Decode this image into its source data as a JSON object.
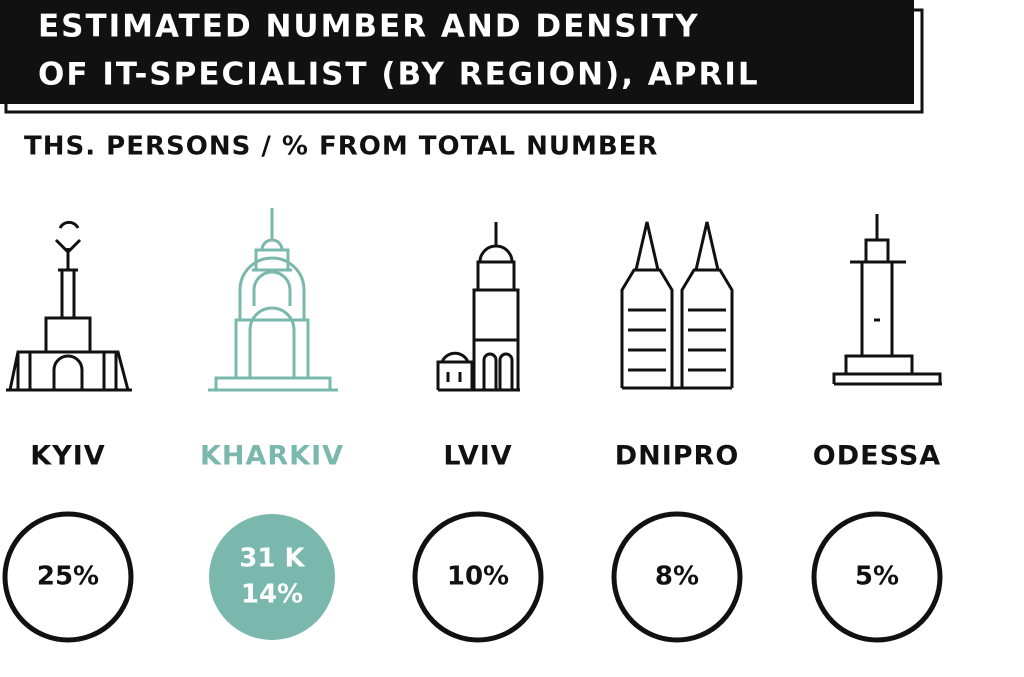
{
  "header": {
    "title_lines": [
      "ESTIMATED NUMBER AND DENSITY",
      "OF IT-SPECIALIST (BY REGION), APRIL"
    ]
  },
  "subtitle": "THS. PERSONS / % FROM TOTAL NUMBER",
  "regions": [
    {
      "name": "KYIV",
      "lines": [
        "25%"
      ]
    },
    {
      "name": "KHARKIV",
      "lines": [
        "31 K",
        "14%"
      ],
      "highlight": true
    },
    {
      "name": "LVIV",
      "lines": [
        "10%"
      ]
    },
    {
      "name": "DNIPRO",
      "lines": [
        "8%"
      ]
    },
    {
      "name": "ODESSA",
      "lines": [
        "5%"
      ]
    }
  ]
}
